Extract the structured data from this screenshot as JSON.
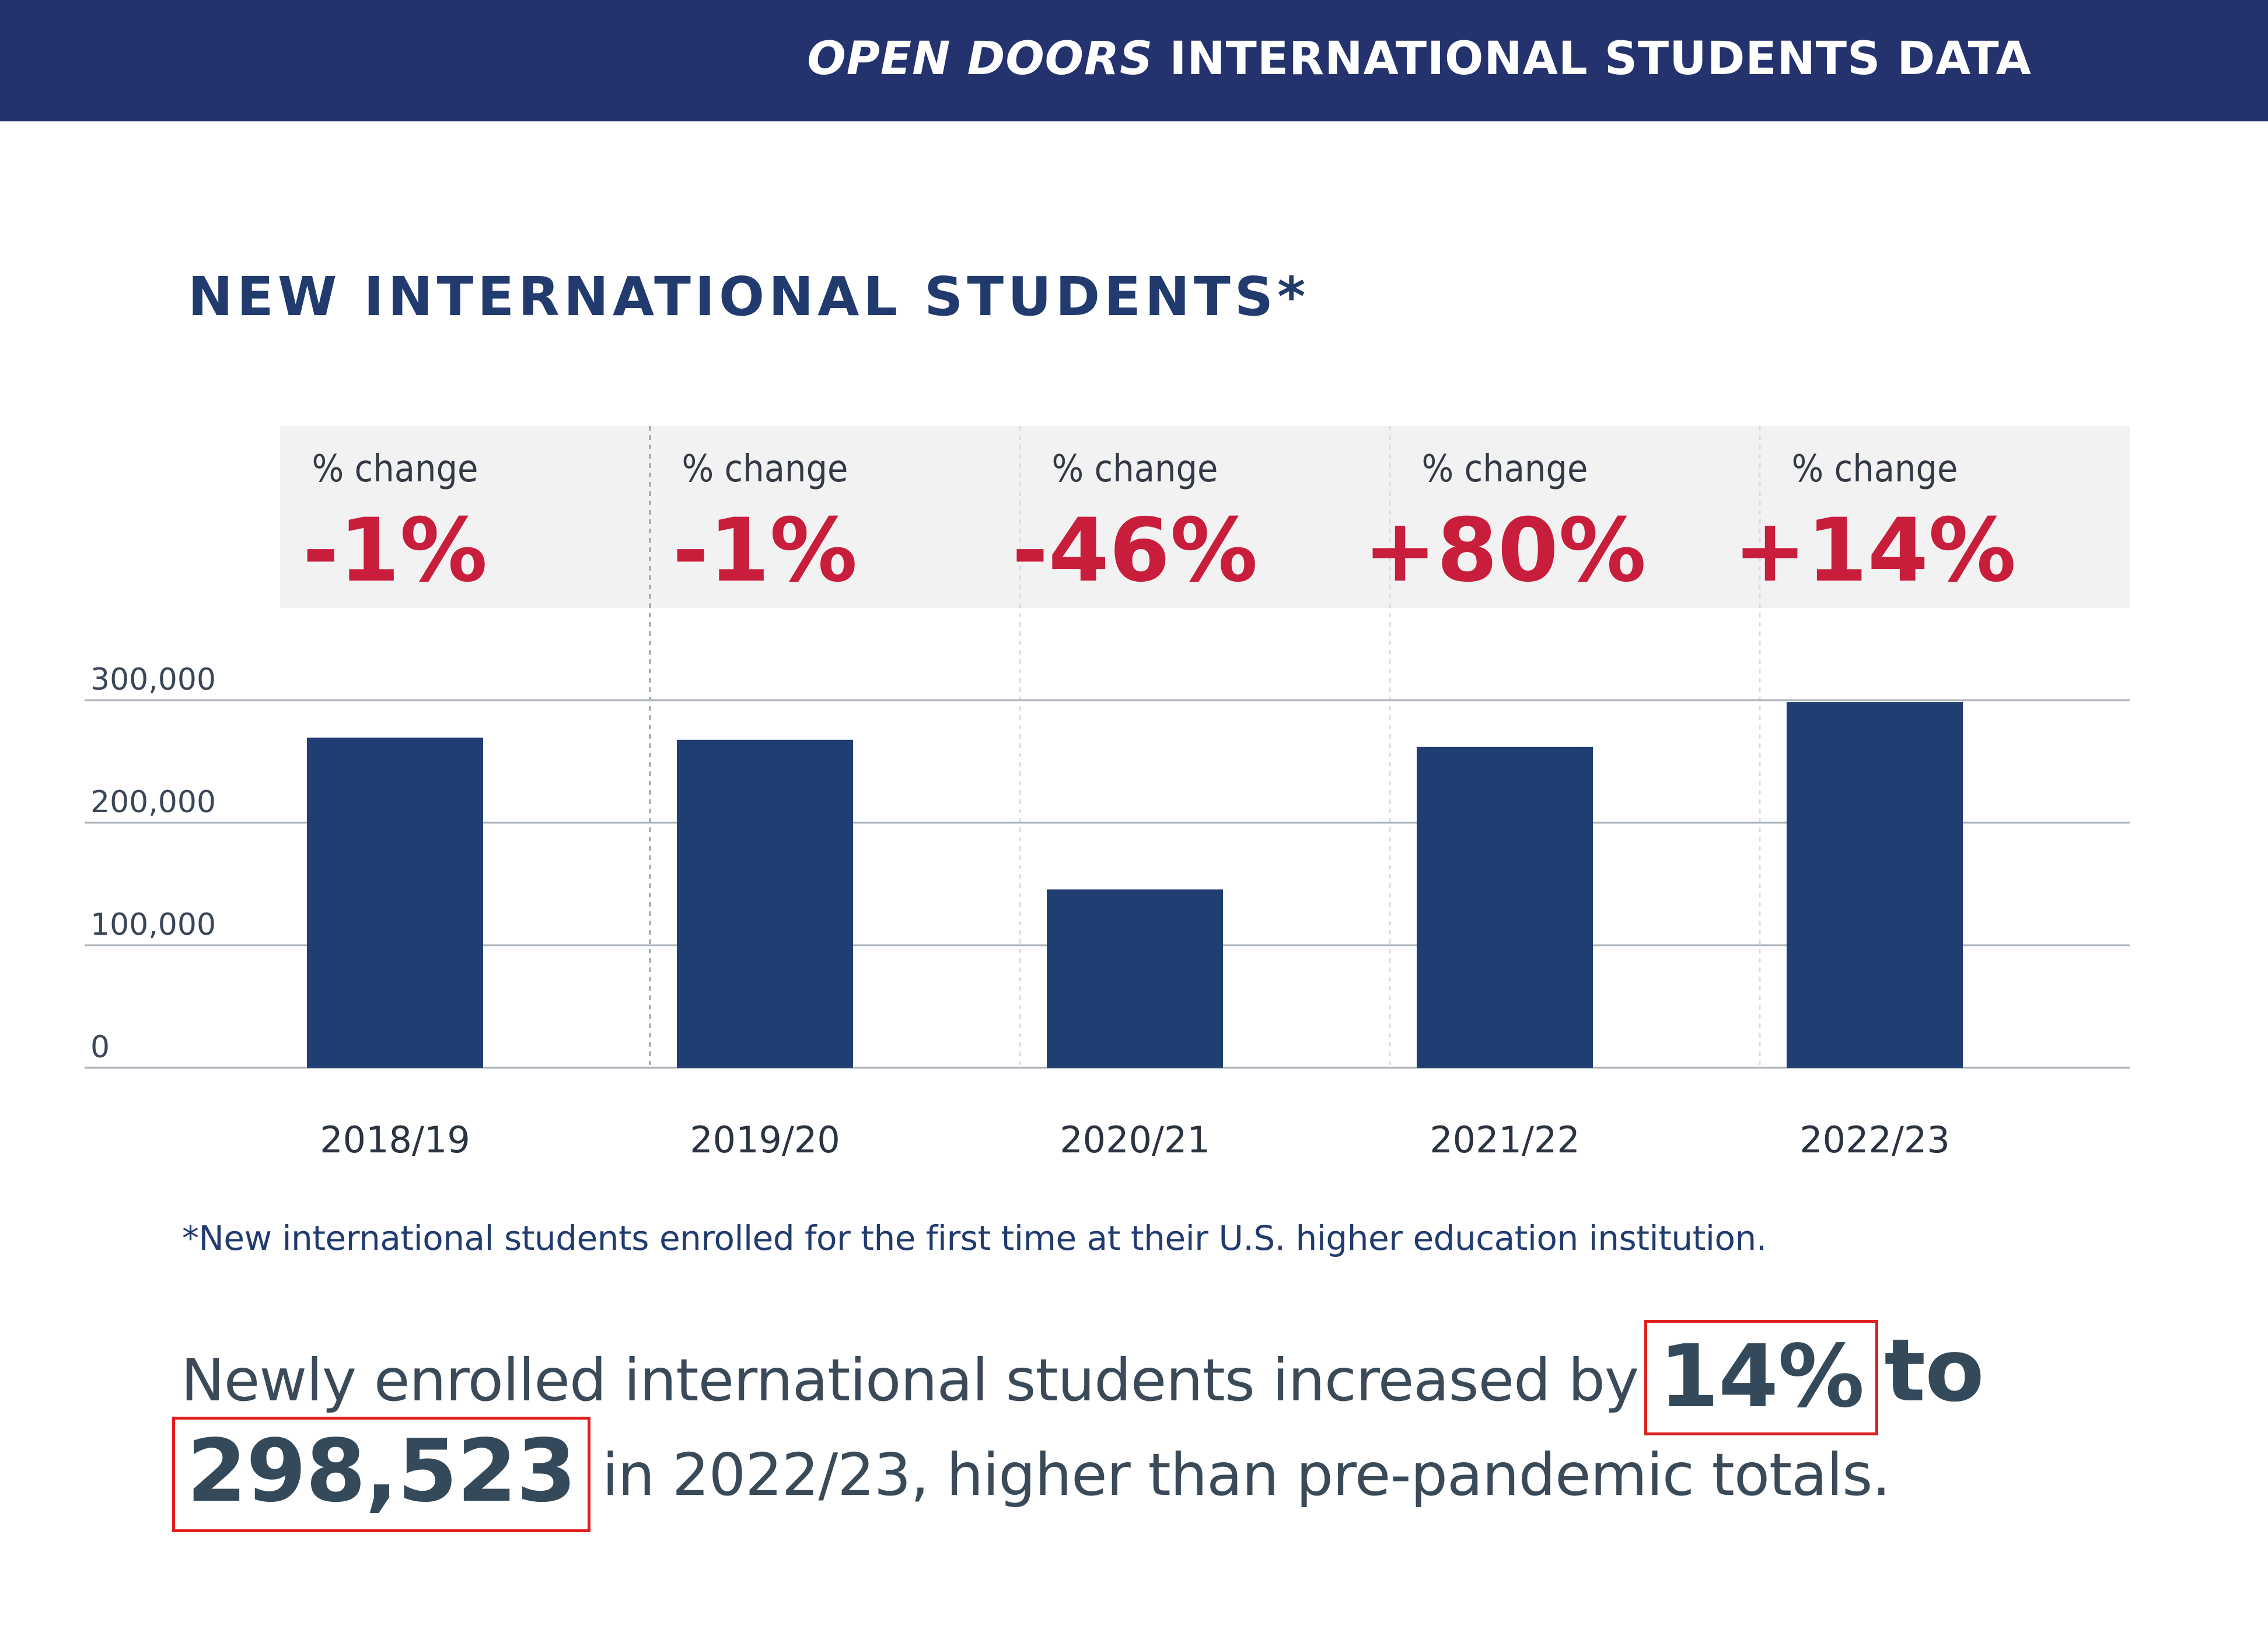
{
  "header": {
    "title_italic": "OPEN DOORS",
    "title_rest": " INTERNATIONAL STUDENTS DATA",
    "background_color": "#24336e"
  },
  "section": {
    "title": "NEW INTERNATIONAL STUDENTS*"
  },
  "chart_data": {
    "type": "bar",
    "title": "NEW INTERNATIONAL STUDENTS*",
    "categories": [
      "2018/19",
      "2019/20",
      "2020/21",
      "2021/22",
      "2022/23"
    ],
    "values": [
      269383,
      267712,
      145528,
      261961,
      298523
    ],
    "pct_change_label": "% change",
    "pct_change": [
      "-1%",
      "-1%",
      "-46%",
      "+80%",
      "+14%"
    ],
    "y_ticks": [
      "0",
      "100,000",
      "200,000",
      "300,000"
    ],
    "y_tick_values": [
      0,
      100000,
      200000,
      300000
    ],
    "ylim": [
      0,
      300000
    ],
    "grid": true,
    "bar_color": "#213e72",
    "pct_color": "#c81e3c",
    "xlabel": "",
    "ylabel": ""
  },
  "footnote": "*New international students enrolled for the first time at their U.S. higher education institution.",
  "summary": {
    "part1": "Newly enrolled international students increased by",
    "highlight1": "14%",
    "part2": "to",
    "highlight2": "298,523",
    "part3": "in 2022/23, higher than pre-pandemic totals.",
    "highlight_box_color": "#e01e1e"
  }
}
